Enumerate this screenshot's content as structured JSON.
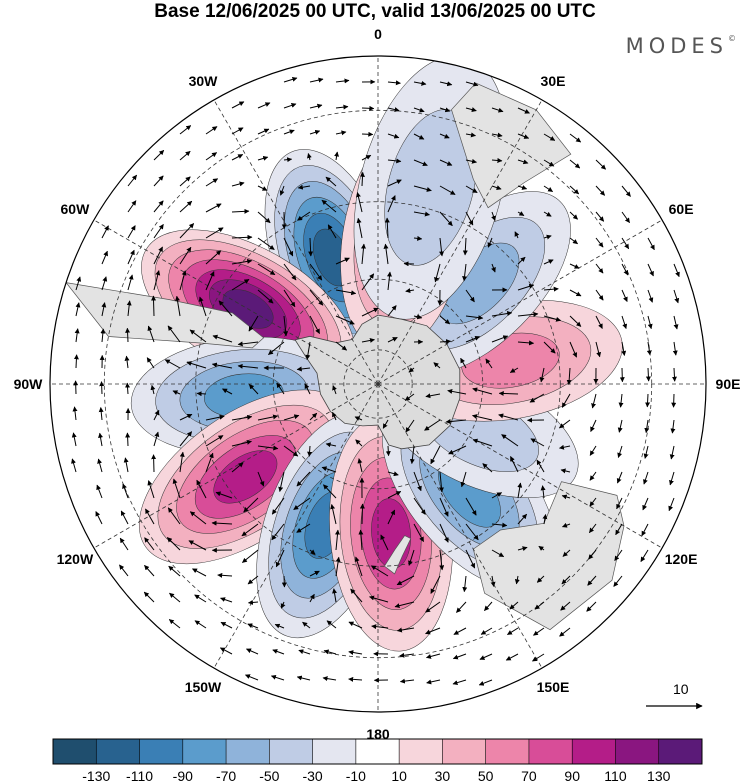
{
  "title": "Base 12/06/2025 00 UTC, valid 13/06/2025 00 UTC",
  "brand": "MODES",
  "brand_mark": "©",
  "longitude_labels": [
    "0",
    "30E",
    "60E",
    "90E",
    "120E",
    "150E",
    "180",
    "150W",
    "120W",
    "90W",
    "60W",
    "30W"
  ],
  "vector_reference": {
    "label": "10"
  },
  "colorbar": {
    "colors": [
      "#1f4e6e",
      "#28628f",
      "#3a7fb5",
      "#5b9ccc",
      "#8fb3da",
      "#bfcce5",
      "#e4e6f0",
      "#ffffff",
      "#f7d6dc",
      "#f3b0c0",
      "#ed85aa",
      "#d84d98",
      "#b41d88",
      "#8a1680",
      "#5b1a78"
    ],
    "ticks": [
      "-130",
      "-110",
      "-90",
      "-70",
      "-50",
      "-30",
      "-10",
      "10",
      "30",
      "50",
      "70",
      "90",
      "110",
      "130"
    ]
  },
  "chart_data": {
    "type": "polar-stereographic map (shaded anomaly with wind vectors)",
    "projection": "south polar stereographic",
    "levels": [
      -130,
      -110,
      -90,
      -70,
      -50,
      -30,
      -10,
      10,
      30,
      50,
      70,
      90,
      110,
      130
    ],
    "anomaly_centres": [
      {
        "lon": 340,
        "lat": -52,
        "value": -110
      },
      {
        "lon": 300,
        "lat": -48,
        "value": 130
      },
      {
        "lon": 265,
        "lat": -52,
        "value": -70
      },
      {
        "lon": 235,
        "lat": -45,
        "value": 90
      },
      {
        "lon": 200,
        "lat": -48,
        "value": -90
      },
      {
        "lon": 175,
        "lat": -48,
        "value": 90
      },
      {
        "lon": 140,
        "lat": -50,
        "value": -70
      },
      {
        "lon": 115,
        "lat": -58,
        "value": -30
      },
      {
        "lon": 80,
        "lat": -52,
        "value": 50
      },
      {
        "lon": 45,
        "lat": -50,
        "value": -50
      },
      {
        "lon": 10,
        "lat": -48,
        "value": 70
      },
      {
        "lon": 15,
        "lat": -35,
        "value": -30
      }
    ]
  }
}
